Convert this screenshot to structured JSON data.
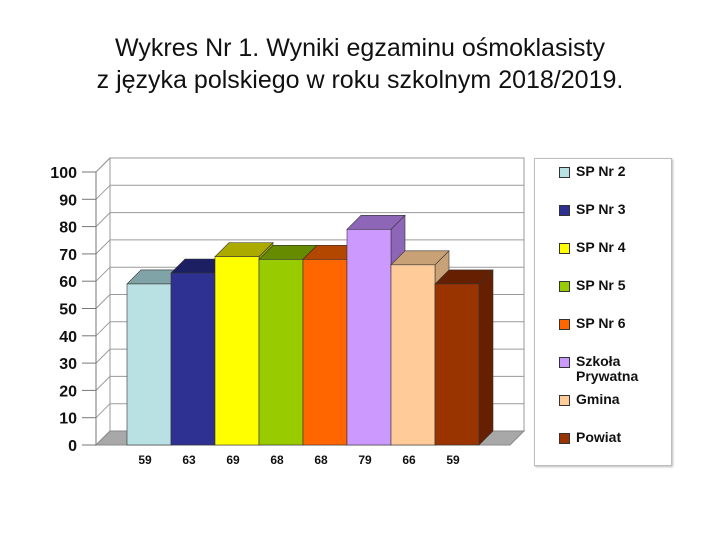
{
  "title": {
    "line1": "Wykres Nr 1. Wyniki egzaminu ośmoklasisty",
    "line2": "z języka polskiego w roku szkolnym 2018/2019."
  },
  "chart_data": {
    "type": "bar",
    "title": "Wykres Nr 1. Wyniki egzaminu ośmoklasisty z języka polskiego w roku szkolnym 2018/2019.",
    "xlabel": "",
    "ylabel": "",
    "ylim": [
      0,
      100
    ],
    "yticks": [
      "0",
      "10",
      "20",
      "30",
      "40",
      "50",
      "60",
      "70",
      "80",
      "90",
      "100"
    ],
    "grid": true,
    "legend_position": "right",
    "categories": [
      "SP Nr 2",
      "SP Nr 3",
      "SP Nr 4",
      "SP Nr 5",
      "SP Nr 6",
      "Szkoła Prywatna",
      "Gmina",
      "Powiat"
    ],
    "values": [
      59,
      63,
      69,
      68,
      68,
      79,
      66,
      59
    ],
    "value_labels": [
      "59",
      "63",
      "69",
      "68",
      "68",
      "79",
      "66",
      "59"
    ],
    "colors": [
      "#b9e0e3",
      "#2e3191",
      "#ffff00",
      "#99cc00",
      "#ff6600",
      "#cc99ff",
      "#ffcc99",
      "#993300"
    ],
    "side_colors": [
      "#7fa3a6",
      "#1c1f61",
      "#aaaa00",
      "#668a00",
      "#b34700",
      "#8e66b8",
      "#c9a176",
      "#661f00"
    ],
    "legend": [
      {
        "label": "SP Nr 2"
      },
      {
        "label": "SP Nr 3"
      },
      {
        "label": "SP Nr 4"
      },
      {
        "label": "SP Nr 5"
      },
      {
        "label": "SP Nr 6"
      },
      {
        "label": "Szkoła\nPrywatna"
      },
      {
        "label": "Gmina"
      },
      {
        "label": "Powiat"
      }
    ]
  }
}
